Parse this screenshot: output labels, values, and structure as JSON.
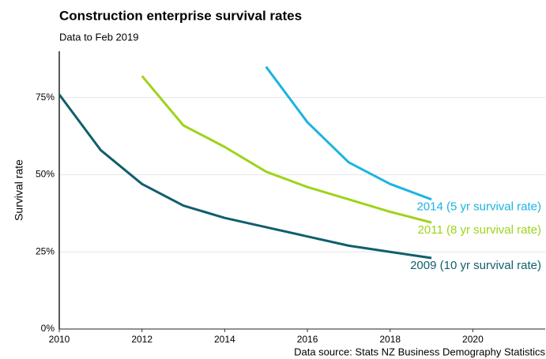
{
  "chart_data": {
    "type": "line",
    "title": "Construction enterprise survival rates",
    "subtitle": "Data to Feb 2019",
    "y_label": "Survival rate",
    "source": "Data source: Stats NZ Business Demography Statistics",
    "xlim": [
      2010,
      2021.75
    ],
    "xticks": [
      2010,
      2012,
      2014,
      2016,
      2018,
      2020
    ],
    "ylim": [
      0,
      90
    ],
    "yticks": [
      {
        "value": 0,
        "label": "0%"
      },
      {
        "value": 25,
        "label": "25%"
      },
      {
        "value": 50,
        "label": "50%"
      },
      {
        "value": 75,
        "label": "75%"
      }
    ],
    "grid": true,
    "series": [
      {
        "name": "2009 (10 yr survival rate)",
        "color": "#0f5f6c",
        "x": [
          2010,
          2011,
          2012,
          2013,
          2014,
          2015,
          2016,
          2017,
          2018,
          2019
        ],
        "values": [
          76,
          58,
          47,
          40,
          36,
          33,
          30,
          27,
          25,
          23
        ]
      },
      {
        "name": "2011 (8 yr survival rate)",
        "color": "#9fd31a",
        "x": [
          2012,
          2013,
          2014,
          2015,
          2016,
          2017,
          2018,
          2019
        ],
        "values": [
          82,
          66,
          59,
          51,
          46,
          42,
          38,
          34.5
        ]
      },
      {
        "name": "2014 (5 yr survival rate)",
        "color": "#1bb4e0",
        "x": [
          2015,
          2016,
          2017,
          2018,
          2019
        ],
        "values": [
          85,
          67,
          54,
          47,
          42
        ]
      }
    ]
  }
}
